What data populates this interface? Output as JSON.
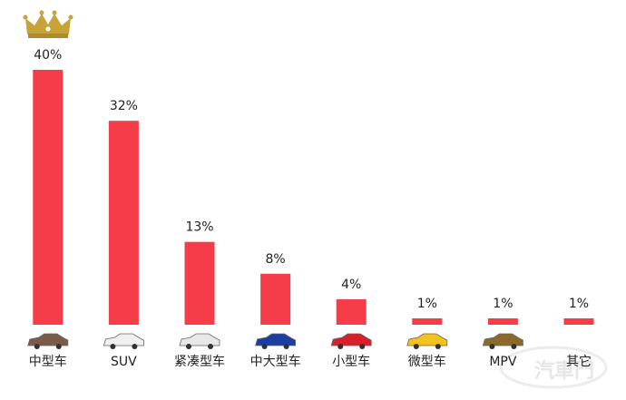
{
  "chart_data": {
    "type": "bar",
    "categories": [
      "中型车",
      "SUV",
      "紧凑型车",
      "中大型车",
      "小型车",
      "微型车",
      "MPV",
      "其它"
    ],
    "values": [
      40,
      32,
      13,
      8,
      4,
      1,
      1,
      1
    ],
    "value_labels": [
      "40%",
      "32%",
      "13%",
      "8%",
      "4%",
      "1%",
      "1%",
      "1%"
    ],
    "color": "#f53d4a",
    "watermark": "汽車門"
  }
}
